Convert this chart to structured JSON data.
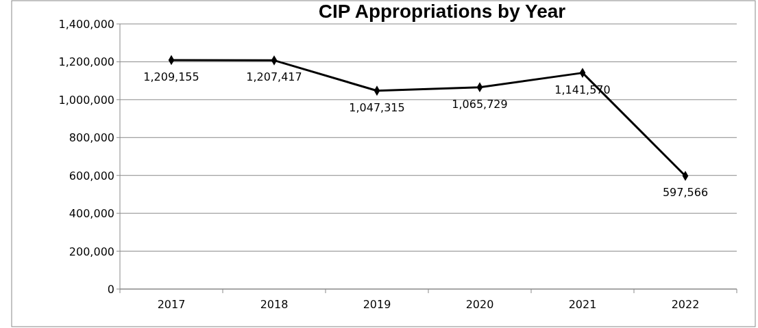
{
  "chart_data": {
    "type": "line",
    "title": "CIP Appropriations by Year",
    "categories": [
      "2017",
      "2018",
      "2019",
      "2020",
      "2021",
      "2022"
    ],
    "series": [
      {
        "color": "#000000",
        "values": [
          1209155,
          1207417,
          1047315,
          1065729,
          1141570,
          597566
        ],
        "value_labels": [
          "1,209,155",
          "1,207,417",
          "1,047,315",
          "1,065,729",
          "1,141,570",
          "597,566"
        ]
      }
    ],
    "ylim": [
      0,
      1400000
    ],
    "yticks": [
      {
        "value": 0,
        "label": "0"
      },
      {
        "value": 200000,
        "label": "200,000"
      },
      {
        "value": 400000,
        "label": "400,000"
      },
      {
        "value": 600000,
        "label": "600,000"
      },
      {
        "value": 800000,
        "label": "800,000"
      },
      {
        "value": 1000000,
        "label": "1,000,000"
      },
      {
        "value": 1200000,
        "label": "1,200,000"
      },
      {
        "value": 1400000,
        "label": "1,400,000"
      }
    ],
    "grid": "y",
    "marker": "diamond",
    "line_style": "solid"
  }
}
